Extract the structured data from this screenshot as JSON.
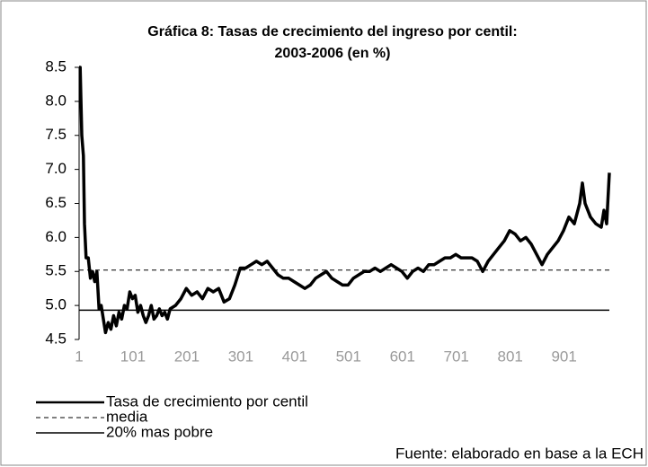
{
  "chart_data": {
    "type": "line",
    "title": [
      "Gráfica 8: Tasas de crecimiento del ingreso por centil:",
      "2003-2006 (en %)"
    ],
    "source": "Fuente: elaborado en base a la ECH",
    "xlim": [
      1,
      985
    ],
    "xticks": [
      1,
      101,
      201,
      301,
      401,
      501,
      601,
      701,
      801,
      901
    ],
    "ylim": [
      4.5,
      8.5
    ],
    "yticks": [
      4.5,
      {
        "value": 5,
        "label": "5.0"
      },
      5.5,
      {
        "value": 6,
        "label": "6.0"
      },
      6.5,
      {
        "value": 7,
        "label": "7.0"
      },
      7.5,
      {
        "value": 8,
        "label": "8.0"
      },
      8.5
    ],
    "series": [
      {
        "name": "Tasa de crecimiento por centil",
        "color": "#000000",
        "width": 3.5,
        "dash": "none",
        "x": [
          1,
          3,
          6,
          9,
          11,
          14,
          18,
          22,
          26,
          30,
          34,
          38,
          42,
          46,
          50,
          55,
          60,
          65,
          70,
          75,
          80,
          85,
          90,
          95,
          100,
          105,
          110,
          115,
          120,
          125,
          130,
          135,
          140,
          145,
          150,
          155,
          160,
          165,
          170,
          180,
          190,
          200,
          210,
          220,
          230,
          240,
          250,
          260,
          270,
          280,
          290,
          300,
          310,
          320,
          330,
          340,
          350,
          360,
          370,
          380,
          390,
          400,
          410,
          420,
          430,
          440,
          450,
          460,
          470,
          480,
          490,
          500,
          510,
          520,
          530,
          540,
          550,
          560,
          570,
          580,
          590,
          600,
          610,
          620,
          630,
          640,
          650,
          660,
          670,
          680,
          690,
          700,
          710,
          720,
          730,
          740,
          750,
          760,
          770,
          780,
          790,
          800,
          810,
          820,
          830,
          840,
          850,
          860,
          870,
          880,
          890,
          900,
          910,
          920,
          930,
          935,
          940,
          950,
          960,
          970,
          975,
          980,
          985
        ],
        "values": [
          8.5,
          8.5,
          7.5,
          7.2,
          6.2,
          5.7,
          5.7,
          5.4,
          5.5,
          5.35,
          5.5,
          4.95,
          5.0,
          4.8,
          4.6,
          4.75,
          4.65,
          4.85,
          4.7,
          4.9,
          4.8,
          5.0,
          4.95,
          5.2,
          5.1,
          5.15,
          4.9,
          5.0,
          4.85,
          4.75,
          4.85,
          5.0,
          4.8,
          4.85,
          4.95,
          4.85,
          4.9,
          4.8,
          4.95,
          5.0,
          5.1,
          5.25,
          5.15,
          5.2,
          5.1,
          5.25,
          5.2,
          5.25,
          5.05,
          5.1,
          5.3,
          5.55,
          5.55,
          5.6,
          5.65,
          5.6,
          5.65,
          5.55,
          5.45,
          5.4,
          5.4,
          5.35,
          5.3,
          5.25,
          5.3,
          5.4,
          5.45,
          5.5,
          5.4,
          5.35,
          5.3,
          5.3,
          5.4,
          5.45,
          5.5,
          5.5,
          5.55,
          5.5,
          5.55,
          5.6,
          5.55,
          5.5,
          5.4,
          5.5,
          5.55,
          5.5,
          5.6,
          5.6,
          5.65,
          5.7,
          5.7,
          5.75,
          5.7,
          5.7,
          5.7,
          5.65,
          5.5,
          5.65,
          5.75,
          5.85,
          5.95,
          6.1,
          6.05,
          5.95,
          6.0,
          5.9,
          5.75,
          5.6,
          5.75,
          5.85,
          5.95,
          6.1,
          6.3,
          6.2,
          6.5,
          6.8,
          6.5,
          6.3,
          6.2,
          6.15,
          6.4,
          6.2,
          6.95
        ]
      },
      {
        "name": "media",
        "color": "#000000",
        "width": 1,
        "dash": "5,4",
        "x": [
          1,
          985
        ],
        "values": [
          5.52,
          5.52
        ]
      },
      {
        "name": "20% mas pobre",
        "color": "#000000",
        "width": 1.5,
        "dash": "none",
        "x": [
          1,
          985
        ],
        "values": [
          4.93,
          4.93
        ]
      }
    ]
  }
}
